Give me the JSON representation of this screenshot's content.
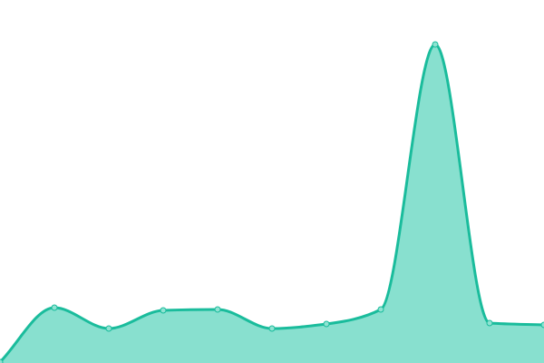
{
  "chart_data": {
    "type": "area",
    "title": "",
    "xlabel": "",
    "ylabel": "",
    "x": [
      0,
      1,
      2,
      3,
      4,
      5,
      6,
      7,
      8,
      9,
      10
    ],
    "values": [
      1,
      61,
      38,
      58,
      59,
      38,
      43,
      59,
      351,
      44,
      42
    ],
    "ylim": [
      0,
      400
    ],
    "grid": false,
    "legend": "none",
    "colors": {
      "line": "#1abc9c",
      "fill": "#88e0cf",
      "point_fill": "#8fe3d2"
    }
  }
}
